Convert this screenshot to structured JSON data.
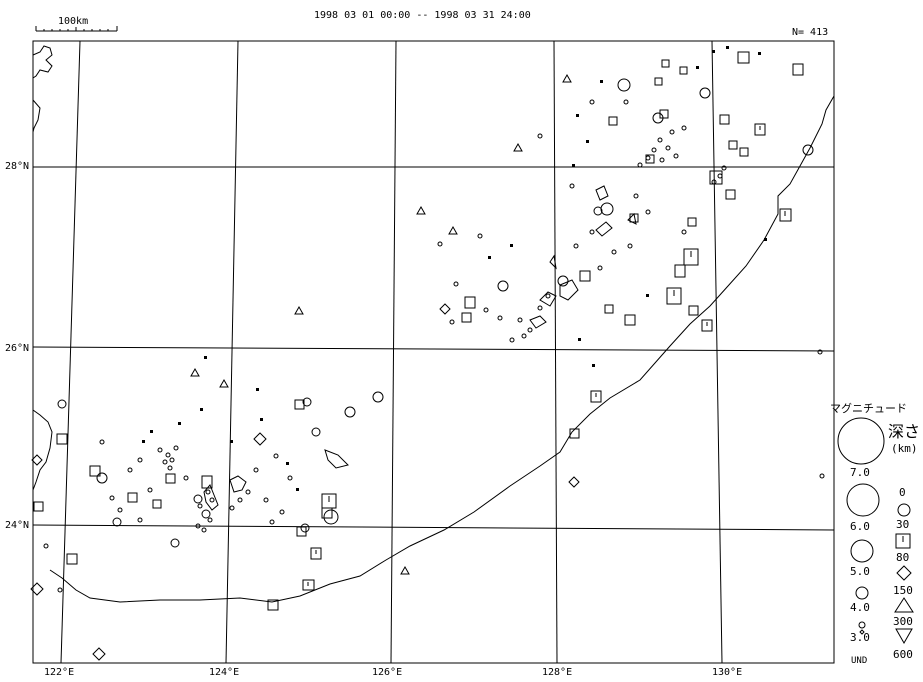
{
  "title": "1998 03 01 00:00 -- 1998 03 31 24:00",
  "event_count": "N= 413",
  "scale_bar_label": "100km",
  "lat_labels": [
    "28°N",
    "26°N",
    "24°N"
  ],
  "lon_labels": [
    "122°E",
    "124°E",
    "126°E",
    "128°E",
    "130°E"
  ],
  "legend": {
    "magnitude_title": "マグニチュード",
    "magnitude_values": [
      "7.0",
      "6.0",
      "5.0",
      "4.0",
      "3.0",
      "UND"
    ],
    "depth_title": "深さ",
    "depth_unit": "(km)",
    "depth_values": [
      "0",
      "30",
      "80",
      "150",
      "300",
      "600"
    ]
  },
  "colors": {
    "ink": "#000000",
    "background": "#ffffff"
  }
}
